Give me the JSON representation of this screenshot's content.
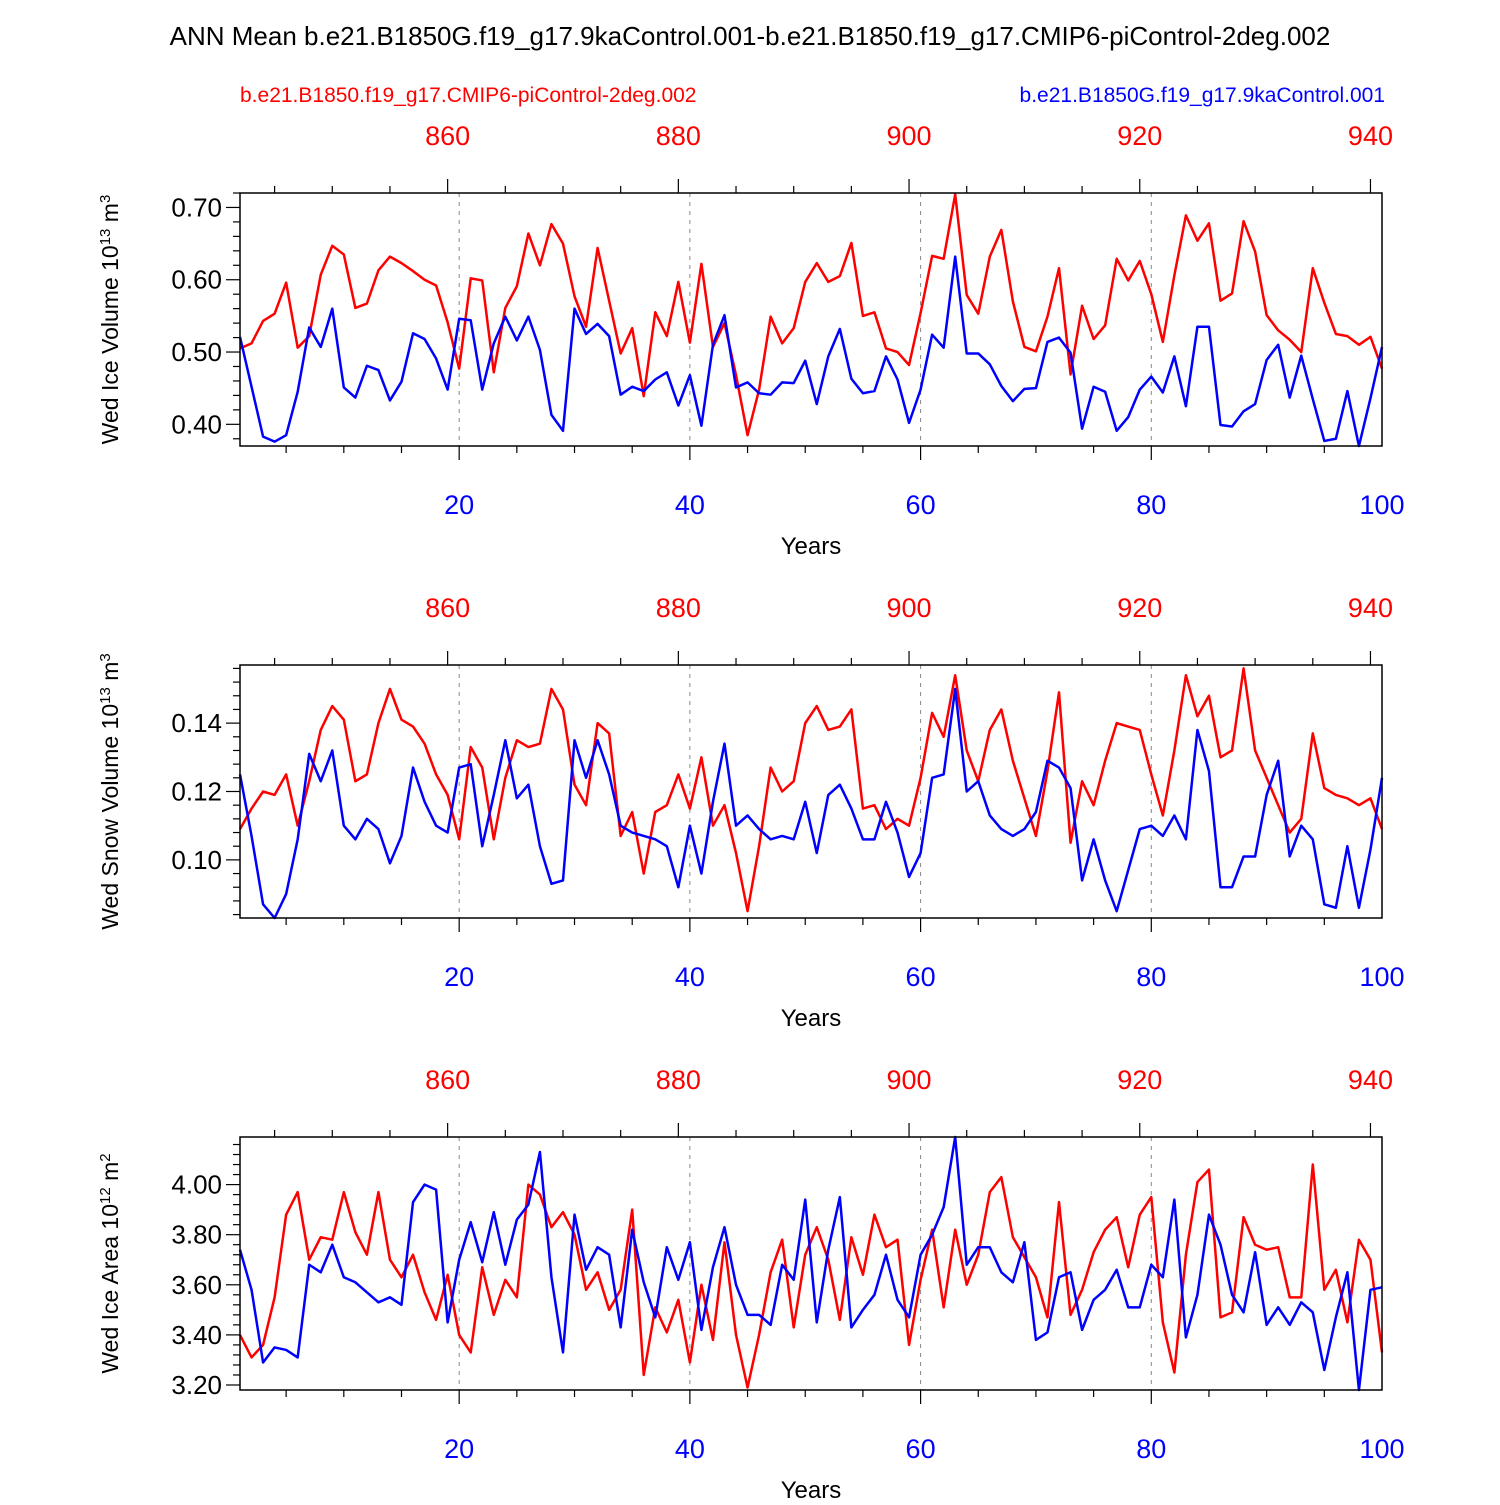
{
  "title": "ANN Mean b.e21.B1850G.f19_g17.9kaControl.001-b.e21.B1850.f19_g17.CMIP6-piControl-2deg.002",
  "legend": {
    "left": "b.e21.B1850.f19_g17.CMIP6-piControl-2deg.002",
    "right": "b.e21.B1850G.f19_g17.9kaControl.001"
  },
  "colors": {
    "case_red": "#ff0000",
    "case_blue": "#0000ff",
    "axis": "#000000",
    "grid": "#888888"
  },
  "chart_data": [
    {
      "type": "line",
      "ylabel_main": "Wed Ice Volume 10",
      "ylabel_exp": "13",
      "ylabel_unit": " m",
      "ylabel_unit_exp": "3",
      "xlabel": "Years",
      "xlim": [
        1,
        100
      ],
      "ylim": [
        0.37,
        0.72
      ],
      "yticks": [
        0.4,
        0.5,
        0.6,
        0.7
      ],
      "ytick_labels": [
        "0.40",
        "0.50",
        "0.60",
        "0.70"
      ],
      "xticks_bottom": [
        20,
        40,
        60,
        80,
        100
      ],
      "xticks_top": [
        860,
        880,
        900,
        920,
        940
      ],
      "top_axis_offset": 841,
      "series": [
        {
          "name": "b.e21.B1850.f19_g17.CMIP6-piControl-2deg.002",
          "color": "#ff0000",
          "values": [
            0.505,
            0.512,
            0.543,
            0.553,
            0.596,
            0.506,
            0.522,
            0.607,
            0.647,
            0.635,
            0.561,
            0.567,
            0.613,
            0.632,
            0.623,
            0.612,
            0.6,
            0.592,
            0.541,
            0.477,
            0.602,
            0.599,
            0.472,
            0.561,
            0.591,
            0.664,
            0.62,
            0.677,
            0.65,
            0.577,
            0.535,
            0.644,
            0.571,
            0.498,
            0.533,
            0.439,
            0.555,
            0.522,
            0.597,
            0.513,
            0.622,
            0.507,
            0.54,
            0.468,
            0.385,
            0.448,
            0.549,
            0.512,
            0.533,
            0.597,
            0.623,
            0.597,
            0.605,
            0.651,
            0.55,
            0.555,
            0.505,
            0.5,
            0.482,
            0.554,
            0.633,
            0.629,
            0.718,
            0.579,
            0.553,
            0.632,
            0.669,
            0.57,
            0.507,
            0.501,
            0.549,
            0.616,
            0.469,
            0.564,
            0.518,
            0.537,
            0.629,
            0.599,
            0.626,
            0.58,
            0.514,
            0.606,
            0.689,
            0.654,
            0.678,
            0.571,
            0.581,
            0.681,
            0.639,
            0.551,
            0.53,
            0.517,
            0.5,
            0.616,
            0.568,
            0.525,
            0.522,
            0.51,
            0.521,
            0.477
          ]
        },
        {
          "name": "b.e21.B1850G.f19_g17.9kaControl.001",
          "color": "#0000ff",
          "values": [
            0.521,
            0.452,
            0.383,
            0.376,
            0.385,
            0.445,
            0.534,
            0.507,
            0.56,
            0.451,
            0.437,
            0.481,
            0.475,
            0.433,
            0.459,
            0.526,
            0.518,
            0.491,
            0.448,
            0.546,
            0.544,
            0.448,
            0.512,
            0.549,
            0.516,
            0.549,
            0.503,
            0.413,
            0.391,
            0.56,
            0.525,
            0.539,
            0.522,
            0.441,
            0.452,
            0.446,
            0.462,
            0.472,
            0.426,
            0.468,
            0.398,
            0.51,
            0.551,
            0.451,
            0.458,
            0.443,
            0.441,
            0.458,
            0.457,
            0.488,
            0.428,
            0.494,
            0.532,
            0.463,
            0.443,
            0.446,
            0.494,
            0.462,
            0.402,
            0.448,
            0.524,
            0.506,
            0.632,
            0.498,
            0.498,
            0.483,
            0.453,
            0.432,
            0.449,
            0.45,
            0.514,
            0.52,
            0.499,
            0.394,
            0.452,
            0.445,
            0.391,
            0.41,
            0.448,
            0.466,
            0.444,
            0.494,
            0.425,
            0.535,
            0.535,
            0.399,
            0.397,
            0.418,
            0.428,
            0.489,
            0.51,
            0.437,
            0.495,
            0.435,
            0.377,
            0.38,
            0.446,
            0.37,
            0.436,
            0.507
          ]
        }
      ]
    },
    {
      "type": "line",
      "ylabel_main": "Wed Snow Volume 10",
      "ylabel_exp": "13",
      "ylabel_unit": " m",
      "ylabel_unit_exp": "3",
      "xlabel": "Years",
      "xlim": [
        1,
        100
      ],
      "ylim": [
        0.083,
        0.157
      ],
      "yticks": [
        0.1,
        0.12,
        0.14
      ],
      "ytick_labels": [
        "0.10",
        "0.12",
        "0.14"
      ],
      "xticks_bottom": [
        20,
        40,
        60,
        80,
        100
      ],
      "xticks_top": [
        860,
        880,
        900,
        920,
        940
      ],
      "top_axis_offset": 841,
      "series": [
        {
          "name": "b.e21.B1850.f19_g17.CMIP6-piControl-2deg.002",
          "color": "#ff0000",
          "values": [
            0.109,
            0.115,
            0.12,
            0.119,
            0.125,
            0.11,
            0.123,
            0.138,
            0.145,
            0.141,
            0.123,
            0.125,
            0.14,
            0.15,
            0.141,
            0.139,
            0.134,
            0.125,
            0.119,
            0.106,
            0.133,
            0.127,
            0.106,
            0.124,
            0.135,
            0.133,
            0.134,
            0.15,
            0.144,
            0.122,
            0.116,
            0.14,
            0.137,
            0.107,
            0.114,
            0.096,
            0.114,
            0.116,
            0.125,
            0.115,
            0.13,
            0.11,
            0.116,
            0.102,
            0.085,
            0.104,
            0.127,
            0.12,
            0.123,
            0.14,
            0.145,
            0.138,
            0.139,
            0.144,
            0.115,
            0.116,
            0.109,
            0.112,
            0.11,
            0.124,
            0.143,
            0.136,
            0.154,
            0.132,
            0.123,
            0.138,
            0.144,
            0.129,
            0.118,
            0.107,
            0.126,
            0.149,
            0.105,
            0.123,
            0.116,
            0.129,
            0.14,
            0.139,
            0.138,
            0.125,
            0.113,
            0.132,
            0.154,
            0.142,
            0.148,
            0.13,
            0.132,
            0.156,
            0.132,
            0.124,
            0.116,
            0.108,
            0.112,
            0.137,
            0.121,
            0.119,
            0.118,
            0.116,
            0.118,
            0.109
          ]
        },
        {
          "name": "b.e21.B1850G.f19_g17.9kaControl.001",
          "color": "#0000ff",
          "values": [
            0.125,
            0.107,
            0.087,
            0.083,
            0.09,
            0.106,
            0.131,
            0.123,
            0.132,
            0.11,
            0.106,
            0.112,
            0.109,
            0.099,
            0.107,
            0.127,
            0.117,
            0.11,
            0.108,
            0.127,
            0.128,
            0.104,
            0.119,
            0.135,
            0.118,
            0.122,
            0.104,
            0.093,
            0.094,
            0.135,
            0.124,
            0.135,
            0.125,
            0.11,
            0.108,
            0.107,
            0.106,
            0.104,
            0.092,
            0.11,
            0.096,
            0.117,
            0.134,
            0.11,
            0.113,
            0.109,
            0.106,
            0.107,
            0.106,
            0.117,
            0.102,
            0.119,
            0.122,
            0.115,
            0.106,
            0.106,
            0.117,
            0.108,
            0.095,
            0.102,
            0.124,
            0.125,
            0.15,
            0.12,
            0.123,
            0.113,
            0.109,
            0.107,
            0.109,
            0.114,
            0.129,
            0.127,
            0.121,
            0.094,
            0.106,
            0.094,
            0.085,
            0.097,
            0.109,
            0.11,
            0.107,
            0.113,
            0.106,
            0.138,
            0.126,
            0.092,
            0.092,
            0.101,
            0.101,
            0.119,
            0.129,
            0.101,
            0.11,
            0.106,
            0.087,
            0.086,
            0.104,
            0.086,
            0.103,
            0.124
          ]
        }
      ]
    },
    {
      "type": "line",
      "ylabel_main": "Wed Ice Area 10",
      "ylabel_exp": "12",
      "ylabel_unit": " m",
      "ylabel_unit_exp": "2",
      "xlabel": "Years",
      "xlim": [
        1,
        100
      ],
      "ylim": [
        3.18,
        4.19
      ],
      "yticks": [
        3.2,
        3.4,
        3.6,
        3.8,
        4.0
      ],
      "ytick_labels": [
        "3.20",
        "3.40",
        "3.60",
        "3.80",
        "4.00"
      ],
      "xticks_bottom": [
        20,
        40,
        60,
        80,
        100
      ],
      "xticks_top": [
        860,
        880,
        900,
        920,
        940
      ],
      "top_axis_offset": 841,
      "series": [
        {
          "name": "b.e21.B1850.f19_g17.CMIP6-piControl-2deg.002",
          "color": "#ff0000",
          "values": [
            3.4,
            3.31,
            3.36,
            3.55,
            3.88,
            3.97,
            3.7,
            3.79,
            3.78,
            3.97,
            3.81,
            3.72,
            3.97,
            3.7,
            3.63,
            3.72,
            3.57,
            3.46,
            3.64,
            3.4,
            3.33,
            3.67,
            3.48,
            3.62,
            3.55,
            4.0,
            3.96,
            3.83,
            3.89,
            3.8,
            3.58,
            3.65,
            3.5,
            3.58,
            3.9,
            3.24,
            3.51,
            3.41,
            3.54,
            3.29,
            3.6,
            3.38,
            3.77,
            3.4,
            3.19,
            3.4,
            3.65,
            3.78,
            3.43,
            3.72,
            3.83,
            3.7,
            3.46,
            3.79,
            3.64,
            3.88,
            3.75,
            3.78,
            3.36,
            3.62,
            3.82,
            3.51,
            3.82,
            3.6,
            3.72,
            3.97,
            4.03,
            3.79,
            3.71,
            3.63,
            3.47,
            3.93,
            3.48,
            3.58,
            3.73,
            3.82,
            3.87,
            3.67,
            3.88,
            3.95,
            3.45,
            3.25,
            3.72,
            4.01,
            4.06,
            3.47,
            3.49,
            3.87,
            3.76,
            3.74,
            3.75,
            3.55,
            3.55,
            4.08,
            3.58,
            3.66,
            3.45,
            3.78,
            3.7,
            3.33
          ]
        },
        {
          "name": "b.e21.B1850G.f19_g17.9kaControl.001",
          "color": "#0000ff",
          "values": [
            3.74,
            3.58,
            3.29,
            3.35,
            3.34,
            3.31,
            3.68,
            3.65,
            3.76,
            3.63,
            3.61,
            3.57,
            3.53,
            3.55,
            3.52,
            3.93,
            4.0,
            3.98,
            3.45,
            3.7,
            3.85,
            3.69,
            3.89,
            3.68,
            3.86,
            3.92,
            4.13,
            3.63,
            3.33,
            3.88,
            3.66,
            3.75,
            3.72,
            3.43,
            3.82,
            3.61,
            3.47,
            3.75,
            3.62,
            3.77,
            3.42,
            3.67,
            3.83,
            3.6,
            3.48,
            3.48,
            3.44,
            3.68,
            3.62,
            3.94,
            3.45,
            3.74,
            3.95,
            3.43,
            3.5,
            3.56,
            3.72,
            3.54,
            3.47,
            3.72,
            3.8,
            3.91,
            4.19,
            3.68,
            3.75,
            3.75,
            3.65,
            3.61,
            3.77,
            3.38,
            3.41,
            3.63,
            3.65,
            3.42,
            3.54,
            3.58,
            3.66,
            3.51,
            3.51,
            3.68,
            3.63,
            3.94,
            3.39,
            3.56,
            3.88,
            3.76,
            3.56,
            3.49,
            3.73,
            3.44,
            3.51,
            3.44,
            3.53,
            3.49,
            3.26,
            3.47,
            3.65,
            3.18,
            3.58,
            3.59
          ]
        }
      ]
    }
  ]
}
